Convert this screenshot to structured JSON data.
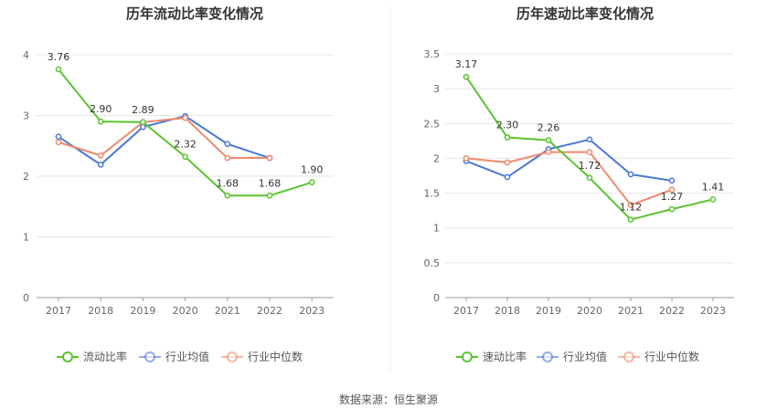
{
  "source_text": "数据来源：恒生聚源",
  "colors": {
    "series_green": "#5ac42f",
    "series_blue": "#4a79d6",
    "series_orange": "#f0896a",
    "grid": "#e6e6e6",
    "axis": "#999999",
    "divider": "#eeeeee"
  },
  "chart_data": [
    {
      "type": "line",
      "title": "历年流动比率变化情况",
      "xlabel": "",
      "ylabel": "",
      "categories": [
        "2017",
        "2018",
        "2019",
        "2020",
        "2021",
        "2022",
        "2023"
      ],
      "ylim": [
        0,
        4
      ],
      "yticks": [
        "0",
        "1",
        "2",
        "3",
        "4"
      ],
      "grid": true,
      "legend_position": "bottom",
      "series": [
        {
          "name": "流动比率",
          "color": "#5ac42f",
          "values": [
            3.76,
            2.9,
            2.89,
            2.32,
            1.68,
            1.68,
            1.9
          ],
          "labels": [
            "3.76",
            "2.90",
            "2.89",
            "2.32",
            "1.68",
            "1.68",
            "1.90"
          ]
        },
        {
          "name": "行业均值",
          "color": "#4a79d6",
          "values": [
            2.65,
            2.19,
            2.81,
            2.99,
            2.53,
            2.3,
            null
          ]
        },
        {
          "name": "行业中位数",
          "color": "#f0896a",
          "values": [
            2.56,
            2.34,
            2.89,
            2.96,
            2.3,
            2.3,
            null
          ]
        }
      ]
    },
    {
      "type": "line",
      "title": "历年速动比率变化情况",
      "xlabel": "",
      "ylabel": "",
      "categories": [
        "2017",
        "2018",
        "2019",
        "2020",
        "2021",
        "2022",
        "2023"
      ],
      "ylim": [
        0,
        3.5
      ],
      "yticks": [
        "0",
        "0.5",
        "1",
        "1.5",
        "2",
        "2.5",
        "3",
        "3.5"
      ],
      "grid": true,
      "legend_position": "bottom",
      "series": [
        {
          "name": "速动比率",
          "color": "#5ac42f",
          "values": [
            3.17,
            2.3,
            2.26,
            1.72,
            1.12,
            1.27,
            1.41
          ],
          "labels": [
            "3.17",
            "2.30",
            "2.26",
            "1.72",
            "1.12",
            "1.27",
            "1.41"
          ]
        },
        {
          "name": "行业均值",
          "color": "#4a79d6",
          "values": [
            1.96,
            1.73,
            2.13,
            2.27,
            1.77,
            1.68,
            null
          ]
        },
        {
          "name": "行业中位数",
          "color": "#f0896a",
          "values": [
            2.0,
            1.94,
            2.09,
            2.09,
            1.33,
            1.55,
            null
          ]
        }
      ]
    }
  ]
}
